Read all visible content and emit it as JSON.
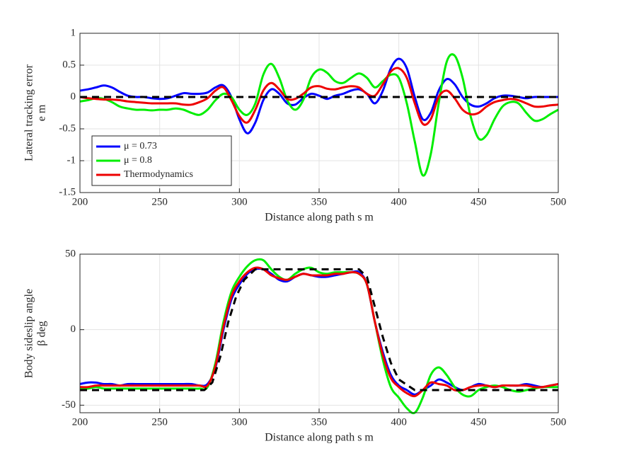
{
  "chart_data": [
    {
      "type": "line",
      "xlabel": "Distance along path  s  m",
      "ylabel": [
        "Lateral tracking error",
        "e  m"
      ],
      "x": [
        200,
        205,
        210,
        215,
        220,
        225,
        230,
        235,
        240,
        245,
        250,
        255,
        260,
        265,
        270,
        275,
        280,
        285,
        290,
        295,
        300,
        305,
        310,
        315,
        320,
        325,
        330,
        335,
        340,
        345,
        350,
        355,
        360,
        365,
        370,
        375,
        380,
        385,
        390,
        395,
        400,
        405,
        410,
        415,
        420,
        425,
        430,
        435,
        440,
        445,
        450,
        455,
        460,
        465,
        470,
        475,
        480,
        485,
        490,
        495,
        500
      ],
      "xlim": [
        200,
        500
      ],
      "xticks": [
        200,
        250,
        300,
        350,
        400,
        450,
        500
      ],
      "ylim": [
        -1.5,
        1
      ],
      "yticks": [
        -1.5,
        -1,
        -0.5,
        0,
        0.5,
        1
      ],
      "grid": true,
      "legend": "southwest",
      "series": [
        {
          "name": "μ = 0.73",
          "color": "#0000ff",
          "values": [
            0.1,
            0.12,
            0.15,
            0.18,
            0.15,
            0.08,
            0.02,
            0,
            0,
            -0.02,
            -0.03,
            -0.02,
            0.02,
            0.06,
            0.05,
            0.05,
            0.07,
            0.15,
            0.18,
            0,
            -0.35,
            -0.57,
            -0.4,
            -0.05,
            0.12,
            0.05,
            -0.1,
            -0.12,
            -0.02,
            0.05,
            0.02,
            -0.03,
            0.02,
            0.05,
            0.1,
            0.12,
            0.05,
            -0.1,
            0.1,
            0.45,
            0.6,
            0.45,
            0,
            -0.35,
            -0.25,
            0.1,
            0.28,
            0.2,
            0,
            -0.12,
            -0.15,
            -0.1,
            -0.02,
            0.02,
            0.02,
            0,
            -0.02,
            0,
            0,
            0,
            0
          ]
        },
        {
          "name": "μ = 0.8",
          "color": "#00ee00",
          "values": [
            -0.07,
            -0.05,
            -0.02,
            -0.03,
            -0.08,
            -0.15,
            -0.18,
            -0.2,
            -0.2,
            -0.21,
            -0.2,
            -0.2,
            -0.18,
            -0.2,
            -0.25,
            -0.28,
            -0.2,
            -0.05,
            0.05,
            0,
            -0.2,
            -0.28,
            -0.1,
            0.35,
            0.52,
            0.3,
            -0.05,
            -0.2,
            -0.05,
            0.3,
            0.43,
            0.38,
            0.25,
            0.22,
            0.3,
            0.37,
            0.3,
            0.15,
            0.25,
            0.35,
            0.3,
            -0.1,
            -0.7,
            -1.23,
            -0.9,
            -0.1,
            0.55,
            0.65,
            0.3,
            -0.3,
            -0.65,
            -0.6,
            -0.35,
            -0.15,
            -0.08,
            -0.1,
            -0.25,
            -0.37,
            -0.35,
            -0.27,
            -0.2
          ]
        },
        {
          "name": "Thermodynamics",
          "color": "#ee0000",
          "values": [
            0,
            -0.02,
            -0.03,
            -0.04,
            -0.04,
            -0.05,
            -0.07,
            -0.08,
            -0.09,
            -0.1,
            -0.1,
            -0.1,
            -0.1,
            -0.12,
            -0.12,
            -0.08,
            -0.02,
            0.1,
            0.15,
            -0.05,
            -0.3,
            -0.4,
            -0.2,
            0.1,
            0.22,
            0.12,
            -0.03,
            -0.03,
            0.05,
            0.15,
            0.17,
            0.13,
            0.12,
            0.15,
            0.17,
            0.15,
            0.05,
            0.02,
            0.2,
            0.4,
            0.45,
            0.3,
            -0.1,
            -0.42,
            -0.35,
            0,
            0.1,
            -0.02,
            -0.2,
            -0.27,
            -0.25,
            -0.15,
            -0.08,
            -0.05,
            -0.03,
            -0.05,
            -0.1,
            -0.15,
            -0.15,
            -0.13,
            -0.12
          ]
        }
      ],
      "reference": {
        "color": "#000000",
        "dash": true,
        "x": [
          200,
          500
        ],
        "values": [
          0,
          0
        ]
      }
    },
    {
      "type": "line",
      "xlabel": "Distance along path  s  m",
      "ylabel": [
        "Body sideslip angle",
        "β  deg"
      ],
      "x": [
        200,
        205,
        210,
        215,
        220,
        225,
        230,
        235,
        240,
        245,
        250,
        255,
        260,
        265,
        270,
        275,
        280,
        285,
        290,
        295,
        300,
        305,
        310,
        315,
        320,
        325,
        330,
        335,
        340,
        345,
        350,
        355,
        360,
        365,
        370,
        375,
        380,
        385,
        390,
        395,
        400,
        405,
        410,
        415,
        420,
        425,
        430,
        435,
        440,
        445,
        450,
        455,
        460,
        465,
        470,
        475,
        480,
        485,
        490,
        495,
        500
      ],
      "xlim": [
        200,
        500
      ],
      "xticks": [
        200,
        250,
        300,
        350,
        400,
        450,
        500
      ],
      "ylim": [
        -55,
        50
      ],
      "yticks": [
        -50,
        0,
        50
      ],
      "grid": true,
      "series": [
        {
          "color": "#0000ff",
          "values": [
            -36,
            -35,
            -35,
            -36,
            -36,
            -37,
            -36,
            -36,
            -36,
            -36,
            -36,
            -36,
            -36,
            -36,
            -36,
            -37,
            -36,
            -25,
            0,
            20,
            30,
            37,
            40,
            40,
            37,
            33,
            32,
            35,
            37,
            36,
            35,
            35,
            36,
            37,
            38,
            38,
            30,
            5,
            -15,
            -30,
            -37,
            -40,
            -43,
            -40,
            -37,
            -33,
            -35,
            -38,
            -40,
            -38,
            -36,
            -37,
            -38,
            -37,
            -37,
            -37,
            -36,
            -37,
            -38,
            -37,
            -36
          ]
        },
        {
          "color": "#00ee00",
          "values": [
            -39,
            -39,
            -38,
            -39,
            -39,
            -39,
            -39,
            -39,
            -39,
            -39,
            -39,
            -39,
            -39,
            -39,
            -39,
            -39,
            -38,
            -22,
            5,
            25,
            35,
            42,
            46,
            46,
            40,
            35,
            33,
            37,
            40,
            41,
            38,
            37,
            38,
            38,
            38,
            37,
            30,
            5,
            -20,
            -38,
            -45,
            -52,
            -55,
            -45,
            -30,
            -25,
            -30,
            -38,
            -43,
            -44,
            -40,
            -38,
            -37,
            -38,
            -40,
            -41,
            -40,
            -39,
            -38,
            -38,
            -38
          ]
        },
        {
          "color": "#ee0000",
          "values": [
            -38,
            -38,
            -37,
            -37,
            -37,
            -37,
            -37,
            -37,
            -37,
            -37,
            -37,
            -37,
            -37,
            -37,
            -37,
            -37,
            -37,
            -24,
            2,
            22,
            32,
            38,
            41,
            40,
            36,
            34,
            33,
            35,
            37,
            36,
            36,
            36,
            37,
            37,
            38,
            37,
            30,
            5,
            -17,
            -32,
            -38,
            -42,
            -44,
            -40,
            -35,
            -36,
            -37,
            -40,
            -40,
            -38,
            -37,
            -37,
            -38,
            -37,
            -37,
            -37,
            -37,
            -38,
            -38,
            -37,
            -36
          ]
        }
      ],
      "reference": {
        "color": "#000000",
        "dash": true,
        "x": [
          200,
          278,
          283,
          288,
          293,
          298,
          303,
          310,
          375,
          380,
          385,
          390,
          395,
          400,
          410,
          500
        ],
        "values": [
          -40,
          -40,
          -35,
          -18,
          5,
          22,
          33,
          40,
          40,
          35,
          15,
          -5,
          -22,
          -33,
          -40,
          -40
        ]
      }
    }
  ]
}
